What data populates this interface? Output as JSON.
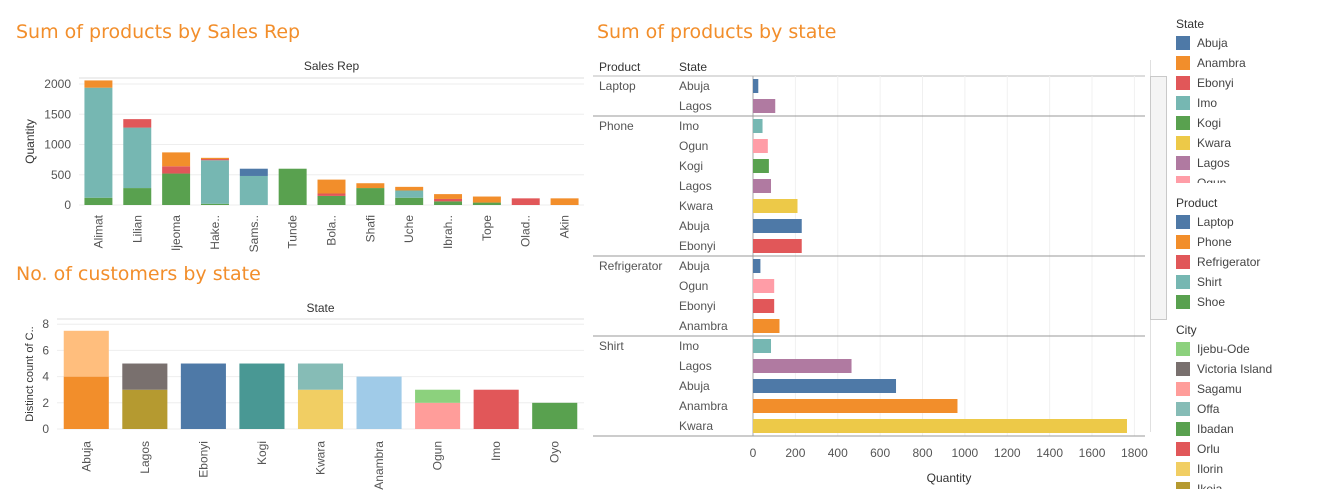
{
  "titles": {
    "sales_rep": "Sum of products by Sales Rep",
    "customers": "No. of customers by state",
    "state": "Sum of products by state"
  },
  "colors": {
    "accent": "#f28e2b",
    "Laptop": "#4e79a7",
    "Phone": "#f28e2b",
    "Refrigerator": "#e15759",
    "Shirt": "#76b7b2",
    "Shoe": "#59a14f",
    "Abuja": "#4e79a7",
    "Anambra": "#f28e2b",
    "Ebonyi": "#e15759",
    "Imo": "#76b7b2",
    "Kogi": "#59a14f",
    "Kwara": "#edc948",
    "Lagos": "#b07aa1",
    "Ogun": "#ff9da7"
  },
  "chart_data": [
    {
      "type": "bar",
      "stacked": true,
      "title": "Sum of products by Sales Rep",
      "header": "Sales Rep",
      "ylabel": "Quantity",
      "ylim": [
        0,
        2100
      ],
      "yticks": [
        0,
        500,
        1000,
        1500,
        2000
      ],
      "categories": [
        "Alimat",
        "Lilian",
        "Ijeoma",
        "Hake..",
        "Sams..",
        "Tunde",
        "Bola..",
        "Shafi",
        "Uche",
        "Ibrah..",
        "Tope",
        "Olad..",
        "Akin"
      ],
      "series": [
        {
          "name": "Shoe",
          "values": [
            120,
            280,
            520,
            20,
            0,
            600,
            150,
            280,
            120,
            60,
            40,
            0,
            0
          ]
        },
        {
          "name": "Shirt",
          "values": [
            1820,
            1000,
            0,
            720,
            480,
            0,
            0,
            0,
            120,
            0,
            0,
            0,
            0
          ]
        },
        {
          "name": "Refrigerator",
          "values": [
            0,
            140,
            120,
            20,
            0,
            0,
            40,
            0,
            0,
            40,
            0,
            110,
            0
          ]
        },
        {
          "name": "Phone",
          "values": [
            120,
            0,
            230,
            20,
            0,
            0,
            230,
            80,
            60,
            80,
            100,
            0,
            110
          ]
        },
        {
          "name": "Laptop",
          "values": [
            0,
            0,
            0,
            0,
            120,
            0,
            0,
            0,
            0,
            0,
            0,
            0,
            0
          ]
        }
      ]
    },
    {
      "type": "bar",
      "stacked": true,
      "title": "No. of customers by state",
      "header": "State",
      "ylabel": "Distinct count of C..",
      "ylim": [
        0,
        8.4
      ],
      "yticks": [
        0,
        2,
        4,
        6,
        8
      ],
      "categories": [
        "Abuja",
        "Lagos",
        "Ebonyi",
        "Kogi",
        "Kwara",
        "Anambra",
        "Ogun",
        "Imo",
        "Oyo"
      ],
      "stacks": [
        [
          {
            "value": 4,
            "color": "#f28e2b"
          },
          {
            "value": 3.5,
            "color": "#ffbe7d"
          }
        ],
        [
          {
            "value": 3,
            "color": "#b59a30"
          },
          {
            "value": 2,
            "color": "#79706e"
          }
        ],
        [
          {
            "value": 5,
            "color": "#4e79a7"
          }
        ],
        [
          {
            "value": 5,
            "color": "#499894"
          }
        ],
        [
          {
            "value": 3,
            "color": "#f1ce63"
          },
          {
            "value": 2,
            "color": "#86bcb6"
          }
        ],
        [
          {
            "value": 4,
            "color": "#a0cbe8"
          }
        ],
        [
          {
            "value": 2,
            "color": "#ff9d9a"
          },
          {
            "value": 1,
            "color": "#8cd17d"
          }
        ],
        [
          {
            "value": 3,
            "color": "#e15759"
          }
        ],
        [
          {
            "value": 2,
            "color": "#59a14f"
          }
        ]
      ]
    },
    {
      "type": "bar",
      "orientation": "horizontal",
      "title": "Sum of products by state",
      "xlabel": "Quantity",
      "xlim": [
        0,
        1850
      ],
      "xticks": [
        0,
        200,
        400,
        600,
        800,
        1000,
        1200,
        1400,
        1600,
        1800
      ],
      "col_headers": [
        "Product",
        "State"
      ],
      "groups": [
        {
          "product": "Laptop",
          "rows": [
            {
              "state": "Abuja",
              "value": 25
            },
            {
              "state": "Lagos",
              "value": 105
            }
          ]
        },
        {
          "product": "Phone",
          "rows": [
            {
              "state": "Imo",
              "value": 45
            },
            {
              "state": "Ogun",
              "value": 70
            },
            {
              "state": "Kogi",
              "value": 75
            },
            {
              "state": "Lagos",
              "value": 85
            },
            {
              "state": "Kwara",
              "value": 210
            },
            {
              "state": "Abuja",
              "value": 230
            },
            {
              "state": "Ebonyi",
              "value": 230
            }
          ]
        },
        {
          "product": "Refrigerator",
          "rows": [
            {
              "state": "Abuja",
              "value": 35
            },
            {
              "state": "Ogun",
              "value": 100
            },
            {
              "state": "Ebonyi",
              "value": 100
            },
            {
              "state": "Anambra",
              "value": 125
            }
          ]
        },
        {
          "product": "Shirt",
          "rows": [
            {
              "state": "Imo",
              "value": 85
            },
            {
              "state": "Lagos",
              "value": 465
            },
            {
              "state": "Abuja",
              "value": 675
            },
            {
              "state": "Anambra",
              "value": 965
            },
            {
              "state": "Kwara",
              "value": 1765
            }
          ]
        }
      ]
    }
  ],
  "legend": {
    "state": {
      "title": "State",
      "items": [
        {
          "label": "Abuja",
          "color": "#4e79a7"
        },
        {
          "label": "Anambra",
          "color": "#f28e2b"
        },
        {
          "label": "Ebonyi",
          "color": "#e15759"
        },
        {
          "label": "Imo",
          "color": "#76b7b2"
        },
        {
          "label": "Kogi",
          "color": "#59a14f"
        },
        {
          "label": "Kwara",
          "color": "#edc948"
        },
        {
          "label": "Lagos",
          "color": "#b07aa1"
        },
        {
          "label": "Ogun",
          "color": "#ff9da7"
        }
      ]
    },
    "product": {
      "title": "Product",
      "items": [
        {
          "label": "Laptop",
          "color": "#4e79a7"
        },
        {
          "label": "Phone",
          "color": "#f28e2b"
        },
        {
          "label": "Refrigerator",
          "color": "#e15759"
        },
        {
          "label": "Shirt",
          "color": "#76b7b2"
        },
        {
          "label": "Shoe",
          "color": "#59a14f"
        }
      ]
    },
    "city": {
      "title": "City",
      "items": [
        {
          "label": "Ijebu-Ode",
          "color": "#8cd17d"
        },
        {
          "label": "Victoria Island",
          "color": "#79706e"
        },
        {
          "label": "Sagamu",
          "color": "#ff9d9a"
        },
        {
          "label": "Offa",
          "color": "#86bcb6"
        },
        {
          "label": "Ibadan",
          "color": "#59a14f"
        },
        {
          "label": "Orlu",
          "color": "#e15759"
        },
        {
          "label": "Ilorin",
          "color": "#f1ce63"
        },
        {
          "label": "Ikeja",
          "color": "#b59a30"
        }
      ]
    }
  }
}
